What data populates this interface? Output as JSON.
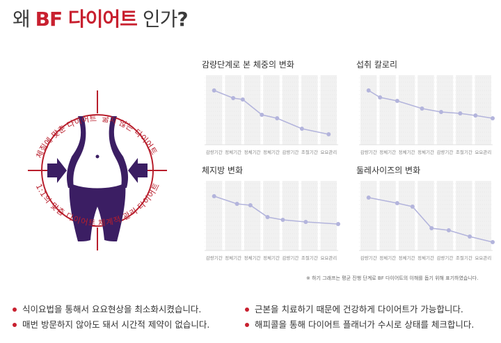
{
  "header": {
    "title_prefix": "왜",
    "title_brand": "BF 다이어트",
    "title_suffix": "인가",
    "title_mark": "?"
  },
  "emblem": {
    "labels": [
      "체질에 맞춘 다이어트",
      "굶지 않는 다이어트",
      "1:1의 맞춤 다이어트",
      "체계적 관리 다이어트"
    ],
    "colors": {
      "accent": "#b81e2c",
      "figure": "#3b1e63"
    }
  },
  "chart_data": [
    {
      "type": "line",
      "title": "감량단계로 본 체중의 변화",
      "categories": [
        "감량기간",
        "정체기간",
        "정체기간",
        "정체기간",
        "감량기간",
        "조절기간",
        "요요관리"
      ],
      "series": [
        {
          "x": [
            0,
            1,
            1.5,
            2.5,
            3.3,
            4.6,
            6
          ],
          "values": [
            78,
            67,
            65,
            43,
            38,
            23,
            15
          ]
        }
      ],
      "ylim": [
        0,
        100
      ]
    },
    {
      "type": "line",
      "title": "섭취 칼로리",
      "categories": [
        "감량기간",
        "정체기간",
        "정체기간",
        "정체기간",
        "감량기간",
        "조절기간",
        "요요관리"
      ],
      "series": [
        {
          "x": [
            0,
            0.6,
            1.5,
            2.8,
            3.8,
            4.8,
            5.6,
            6.5
          ],
          "values": [
            78,
            68,
            63,
            52,
            47,
            45,
            42,
            38
          ]
        }
      ],
      "ylim": [
        0,
        100
      ]
    },
    {
      "type": "line",
      "title": "체지방 변화",
      "categories": [
        "감량기간",
        "정체기간",
        "정체기간",
        "정체기간",
        "감량기간",
        "조절기간",
        "요요관리"
      ],
      "series": [
        {
          "x": [
            0,
            1.2,
            1.9,
            2.8,
            3.6,
            4.8,
            6.5
          ],
          "values": [
            78,
            67,
            65,
            48,
            44,
            41,
            38
          ]
        }
      ],
      "ylim": [
        0,
        100
      ]
    },
    {
      "type": "line",
      "title": "둘레사이즈의 변화",
      "categories": [
        "감량기간",
        "정체기간",
        "정체기간",
        "정체기간",
        "감량기간",
        "조절기간",
        "요요관리"
      ],
      "series": [
        {
          "x": [
            0,
            1.5,
            2.3,
            3.3,
            4.2,
            5.3,
            6.5
          ],
          "values": [
            76,
            68,
            63,
            32,
            29,
            20,
            12
          ]
        }
      ],
      "ylim": [
        0,
        100
      ]
    }
  ],
  "note": "※ 하기 그래프는 평균 진행 단계로 BF 다이어트의 이해를 돕기 위해 표기하였습니다.",
  "bullets": [
    "식이요법을 통해서 요요현상을 최소화시켰습니다.",
    "매번 방문하지 않아도 돼서 시간적 제약이 없습니다.",
    "근본을 치료하기 때문에 건강하게 다이어트가 가능합니다.",
    "해피콜을 통해 다이어트 플래너가 수시로 상태를 체크합니다."
  ],
  "colors": {
    "line": "#b3b4dc",
    "grid": "#e0e0e0",
    "band": "#f1f1f1",
    "tick": "#888888"
  }
}
